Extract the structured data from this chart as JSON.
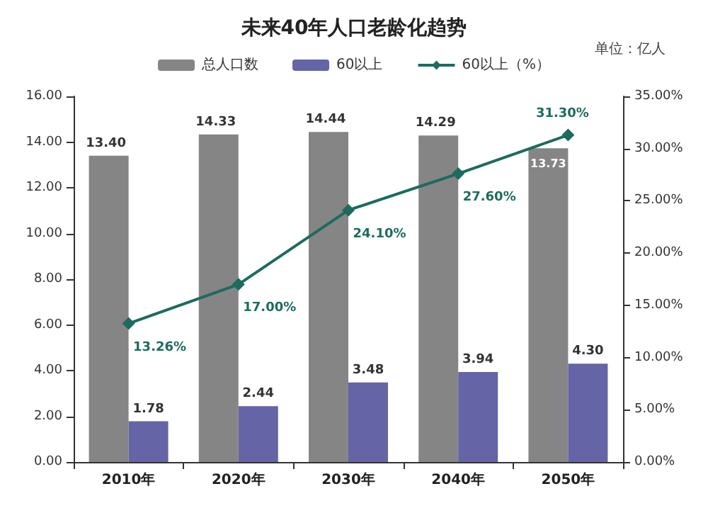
{
  "chart_data": {
    "type": "bar",
    "title": "未来40年人口老龄化趋势",
    "annotations": [
      "单位：亿人"
    ],
    "categories": [
      "2010年",
      "2020年",
      "2030年",
      "2040年",
      "2050年"
    ],
    "series": [
      {
        "name": "总人口数",
        "color": "#858585",
        "values": [
          13.4,
          14.33,
          14.44,
          14.29,
          13.73
        ],
        "value_labels": [
          "13.40",
          "14.33",
          "14.44",
          "14.29",
          "13.73"
        ]
      },
      {
        "name": "60以上",
        "color": "#6464a6",
        "values": [
          1.78,
          2.44,
          3.48,
          3.94,
          4.3
        ],
        "value_labels": [
          "1.78",
          "2.44",
          "3.48",
          "3.94",
          "4.30"
        ]
      },
      {
        "name": "60以上（%）",
        "type": "line",
        "axis": "y2",
        "color": "#1d6b5e",
        "marker": "diamond",
        "values": [
          13.26,
          17.0,
          24.1,
          27.6,
          31.3
        ],
        "value_labels": [
          "13.26%",
          "17.00%",
          "24.10%",
          "27.60%",
          "31.30%"
        ]
      }
    ],
    "ylim": [
      0,
      16
    ],
    "yticks": [
      {
        "value": 0,
        "label": "0.00"
      },
      {
        "value": 2,
        "label": "2.00"
      },
      {
        "value": 4,
        "label": "4.00"
      },
      {
        "value": 6,
        "label": "6.00"
      },
      {
        "value": 8,
        "label": "8.00"
      },
      {
        "value": 10,
        "label": "10.00"
      },
      {
        "value": 12,
        "label": "12.00"
      },
      {
        "value": 14,
        "label": "14.00"
      },
      {
        "value": 16,
        "label": "16.00"
      }
    ],
    "y2lim": [
      0,
      35
    ],
    "y2ticks": [
      {
        "value": 0,
        "label": "0.00%"
      },
      {
        "value": 5,
        "label": "5.00%"
      },
      {
        "value": 10,
        "label": "10.00%"
      },
      {
        "value": 15,
        "label": "15.00%"
      },
      {
        "value": 20,
        "label": "20.00%"
      },
      {
        "value": 25,
        "label": "25.00%"
      },
      {
        "value": 30,
        "label": "30.00%"
      },
      {
        "value": 35,
        "label": "35.00%"
      }
    ],
    "legend": "top",
    "grid": false
  }
}
